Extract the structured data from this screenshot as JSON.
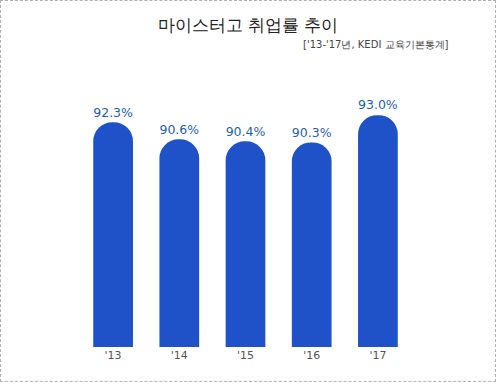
{
  "chart_data": {
    "type": "bar",
    "title": "마이스터고 취업률 추이",
    "subtitle": "['13-'17년, KEDI 교육기본통계]",
    "categories": [
      "'13",
      "'14",
      "'15",
      "'16",
      "'17"
    ],
    "values": [
      92.3,
      90.6,
      90.4,
      90.3,
      93.0
    ],
    "value_labels": [
      "92.3%",
      "90.6%",
      "90.4%",
      "90.3%",
      "93.0%"
    ],
    "color": "#1f52c8",
    "ylim": [
      70,
      95
    ],
    "grid": false,
    "data_labels": true,
    "tick_labels": "x"
  }
}
